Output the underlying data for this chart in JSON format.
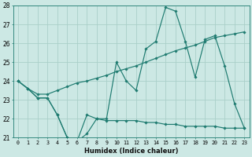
{
  "xlabel": "Humidex (Indice chaleur)",
  "x": [
    0,
    1,
    2,
    3,
    4,
    5,
    6,
    7,
    8,
    9,
    10,
    11,
    12,
    13,
    14,
    15,
    16,
    17,
    18,
    19,
    20,
    21,
    22,
    23
  ],
  "line_zigzag": [
    24.0,
    23.6,
    23.1,
    23.1,
    22.2,
    21.0,
    20.8,
    22.2,
    22.0,
    22.0,
    25.0,
    24.0,
    23.5,
    25.7,
    26.1,
    27.9,
    27.7,
    26.1,
    24.2,
    26.2,
    26.4,
    24.8,
    22.8,
    21.5
  ],
  "line_lower": [
    24.0,
    23.6,
    23.1,
    23.1,
    22.2,
    21.0,
    20.8,
    21.2,
    22.0,
    21.9,
    21.9,
    21.9,
    21.9,
    21.8,
    21.8,
    21.7,
    21.7,
    21.6,
    21.6,
    21.6,
    21.6,
    21.5,
    21.5,
    21.5
  ],
  "line_trend": [
    24.0,
    23.6,
    23.3,
    23.3,
    23.5,
    23.7,
    23.9,
    24.0,
    24.15,
    24.3,
    24.5,
    24.65,
    24.8,
    25.0,
    25.2,
    25.4,
    25.6,
    25.75,
    25.9,
    26.1,
    26.3,
    26.4,
    26.5,
    26.6
  ],
  "color": "#1e7b70",
  "bg_color": "#cce8e4",
  "grid_color": "#aacfc9",
  "ylim": [
    21,
    28
  ],
  "yticks": [
    21,
    22,
    23,
    24,
    25,
    26,
    27,
    28
  ],
  "xlim": [
    -0.5,
    23.5
  ]
}
